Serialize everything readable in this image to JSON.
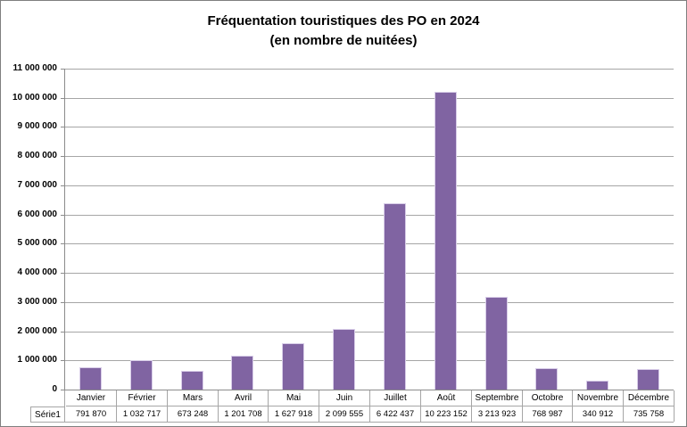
{
  "chart_data": {
    "type": "bar",
    "title": "Fréquentation touristiques des PO en 2024",
    "subtitle": "(en nombre de nuitées)",
    "categories": [
      "Janvier",
      "Février",
      "Mars",
      "Avril",
      "Mai",
      "Juin",
      "Juillet",
      "Août",
      "Septembre",
      "Octobre",
      "Novembre",
      "Décembre"
    ],
    "series": [
      {
        "name": "Série1",
        "values": [
          791870,
          1032717,
          673248,
          1201708,
          1627918,
          2099555,
          6422437,
          10223152,
          3213923,
          768987,
          340912,
          735758
        ],
        "value_labels": [
          "791 870",
          "1 032 717",
          "673 248",
          "1 201 708",
          "1 627 918",
          "2 099 555",
          "6 422 437",
          "10 223 152",
          "3 213 923",
          "768 987",
          "340 912",
          "735 758"
        ]
      }
    ],
    "xlabel": "",
    "ylabel": "",
    "ylim": [
      0,
      11000000
    ],
    "ytick_interval": 1000000,
    "ytick_labels": [
      "0",
      "1 000 000",
      "2 000 000",
      "3 000 000",
      "4 000 000",
      "5 000 000",
      "6 000 000",
      "7 000 000",
      "8 000 000",
      "9 000 000",
      "10 000 000",
      "11 000 000"
    ],
    "grid": true,
    "legend_position": "data-table-below-x-axis",
    "colors": {
      "bar_fill": "#8064A2",
      "bar_border": "#D8CDE8",
      "gridline": "#A6A6A6",
      "axis": "#8C8C8C",
      "table_border": "#A6A6A6",
      "text": "#000000",
      "background": "#FFFFFF"
    }
  }
}
